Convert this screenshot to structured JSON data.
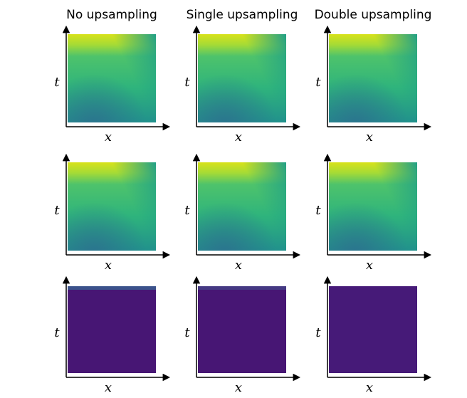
{
  "columns": [
    {
      "title": "No upsampling"
    },
    {
      "title": "Single upsampling"
    },
    {
      "title": "Double upsampling"
    }
  ],
  "axis_labels": {
    "x": "x",
    "y": "t"
  }
}
